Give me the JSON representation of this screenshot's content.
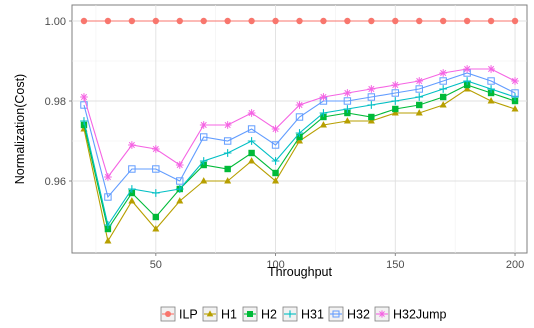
{
  "chart_data": {
    "type": "line",
    "title": "",
    "xlabel": "Throughput",
    "ylabel": "Normalization(Cost)",
    "xlim": [
      15,
      205
    ],
    "ylim": [
      0.942,
      1.004
    ],
    "xticks": [
      50,
      100,
      150,
      200
    ],
    "xtick_labels": [
      "50",
      "100",
      "150",
      "200"
    ],
    "yticks": [
      0.96,
      0.98,
      1.0
    ],
    "ytick_labels": [
      "0.96",
      "0.98",
      "1.00"
    ],
    "grid": true,
    "legend_position": "bottom",
    "x": [
      20,
      30,
      40,
      50,
      60,
      70,
      80,
      90,
      100,
      110,
      120,
      130,
      140,
      150,
      160,
      170,
      180,
      190,
      200
    ],
    "series": [
      {
        "name": "ILP",
        "color": "#F8766D",
        "marker": "circle",
        "values": [
          1.0,
          1.0,
          1.0,
          1.0,
          1.0,
          1.0,
          1.0,
          1.0,
          1.0,
          1.0,
          1.0,
          1.0,
          1.0,
          1.0,
          1.0,
          1.0,
          1.0,
          1.0,
          1.0
        ]
      },
      {
        "name": "H1",
        "color": "#B79F00",
        "marker": "triangle",
        "values": [
          0.973,
          0.945,
          0.955,
          0.948,
          0.955,
          0.96,
          0.96,
          0.965,
          0.96,
          0.97,
          0.974,
          0.975,
          0.975,
          0.977,
          0.977,
          0.979,
          0.983,
          0.98,
          0.978
        ]
      },
      {
        "name": "H2",
        "color": "#00BA38",
        "marker": "square",
        "values": [
          0.974,
          0.948,
          0.957,
          0.951,
          0.958,
          0.964,
          0.963,
          0.967,
          0.962,
          0.971,
          0.976,
          0.977,
          0.976,
          0.978,
          0.979,
          0.981,
          0.984,
          0.982,
          0.98
        ]
      },
      {
        "name": "H31",
        "color": "#00BFC4",
        "marker": "plus",
        "values": [
          0.975,
          0.949,
          0.958,
          0.957,
          0.958,
          0.965,
          0.967,
          0.97,
          0.965,
          0.972,
          0.977,
          0.978,
          0.979,
          0.98,
          0.981,
          0.983,
          0.985,
          0.983,
          0.981
        ]
      },
      {
        "name": "H32",
        "color": "#619CFF",
        "marker": "square-open",
        "values": [
          0.979,
          0.956,
          0.963,
          0.963,
          0.96,
          0.971,
          0.97,
          0.973,
          0.969,
          0.976,
          0.98,
          0.98,
          0.981,
          0.982,
          0.983,
          0.985,
          0.987,
          0.985,
          0.982
        ]
      },
      {
        "name": "H32Jump",
        "color": "#F564E3",
        "marker": "asterisk",
        "values": [
          0.981,
          0.961,
          0.969,
          0.968,
          0.964,
          0.974,
          0.974,
          0.977,
          0.973,
          0.979,
          0.981,
          0.982,
          0.983,
          0.984,
          0.985,
          0.987,
          0.988,
          0.988,
          0.985
        ]
      }
    ]
  }
}
